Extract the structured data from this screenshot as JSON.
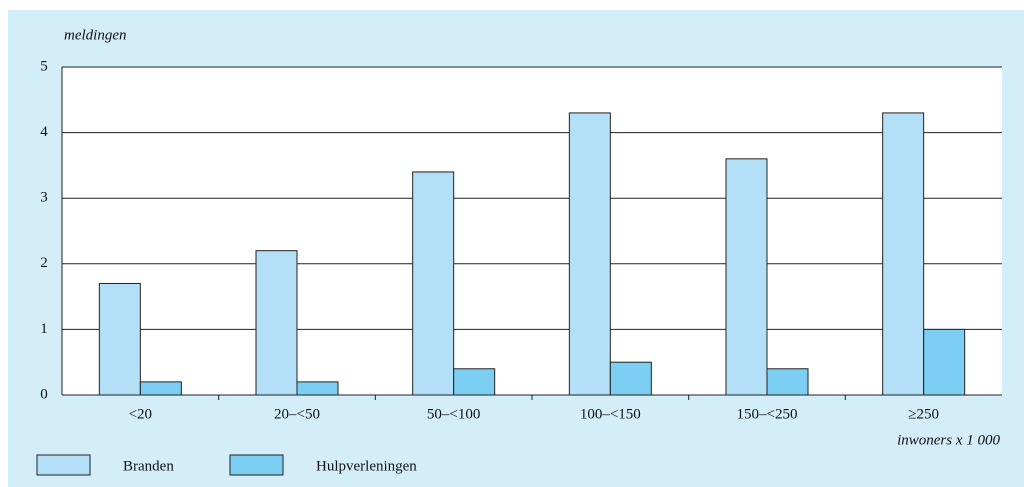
{
  "chart_data": {
    "type": "bar",
    "y_label": "meldingen",
    "x_label": "inwoners x 1 000",
    "categories": [
      "<20",
      "20–<50",
      "50–<100",
      "100–<150",
      "150–<250",
      "≥250"
    ],
    "series": [
      {
        "name": "Branden",
        "color": "#b3e0f7",
        "values": [
          1.7,
          2.2,
          3.4,
          4.3,
          3.6,
          4.3
        ]
      },
      {
        "name": "Hulpverleningen",
        "color": "#7ccff2",
        "values": [
          0.2,
          0.2,
          0.4,
          0.5,
          0.4,
          1.0
        ]
      }
    ],
    "ylim": [
      0,
      5
    ],
    "yticks": [
      0,
      1,
      2,
      3,
      4,
      5
    ],
    "grid": true
  }
}
